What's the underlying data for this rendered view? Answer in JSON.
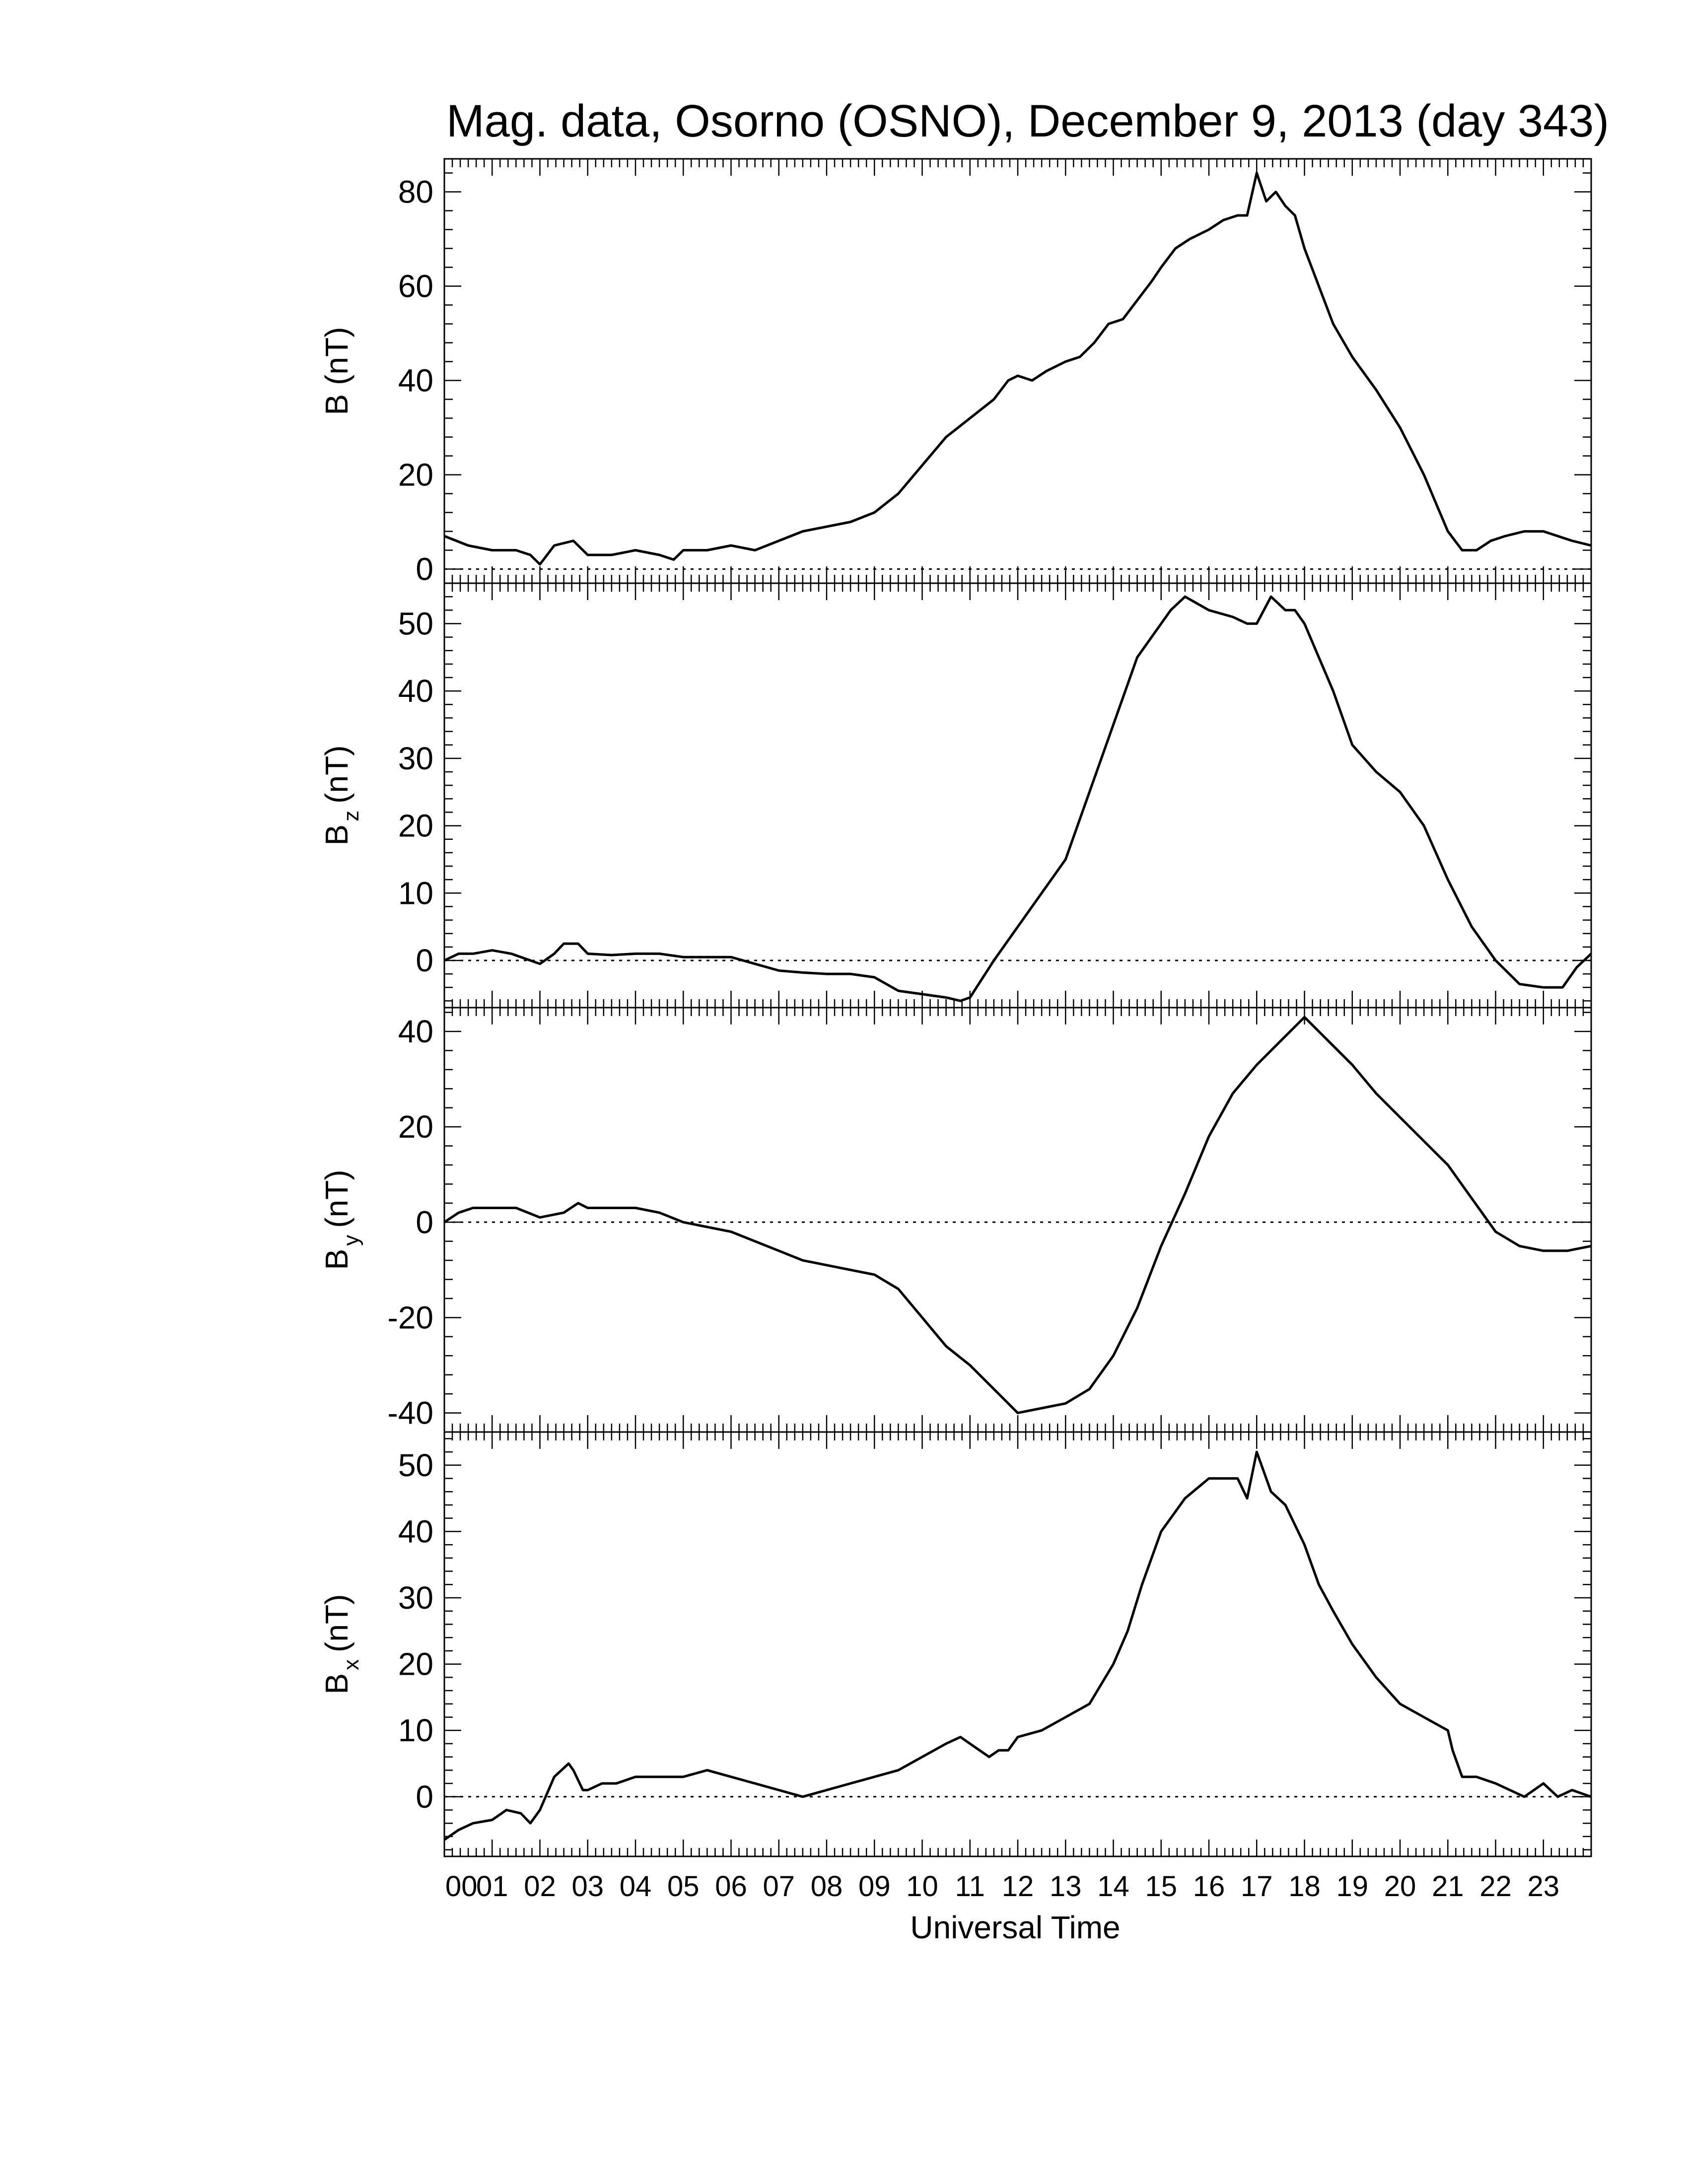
{
  "title": "Mag. data, Osorno (OSNO), December 9, 2013 (day 343)",
  "xlabel": "Universal Time",
  "colors": {
    "line": "#000000",
    "background": "#ffffff",
    "zero_line": "#000000"
  },
  "chart_data": [
    {
      "type": "line",
      "ylabel_main": "B (nT)",
      "ylabel_base": "B",
      "ylabel_sub": "",
      "ylabel_unit": "(nT)",
      "ylim": [
        -3,
        87
      ],
      "yticks": [
        0,
        20,
        40,
        60,
        80
      ],
      "ytick_labels": [
        "0",
        "20",
        "40",
        "60",
        "80"
      ],
      "xlim": [
        0,
        24
      ],
      "x_tick_labels": [
        "00",
        "01",
        "02",
        "03",
        "04",
        "05",
        "06",
        "07",
        "08",
        "09",
        "10",
        "11",
        "12",
        "13",
        "14",
        "15",
        "16",
        "17",
        "18",
        "19",
        "20",
        "21",
        "22",
        "23"
      ],
      "zero_line": "dotted",
      "series": [
        {
          "x": [
            0,
            0.5,
            1,
            1.5,
            1.8,
            2,
            2.3,
            2.7,
            3,
            3.5,
            4,
            4.5,
            4.8,
            5,
            5.5,
            6,
            6.5,
            7,
            7.5,
            8,
            8.5,
            9,
            9.5,
            10,
            10.5,
            11,
            11.5,
            11.8,
            12,
            12.3,
            12.6,
            13,
            13.3,
            13.6,
            13.9,
            14.2,
            14.5,
            14.8,
            15,
            15.3,
            15.6,
            16,
            16.3,
            16.6,
            16.8,
            17,
            17.2,
            17.4,
            17.6,
            17.8,
            18,
            18.3,
            18.6,
            19,
            19.5,
            20,
            20.5,
            21,
            21.3,
            21.6,
            21.9,
            22.2,
            22.6,
            23,
            23.3,
            23.6,
            24
          ],
          "y": [
            7,
            5,
            4,
            4,
            3,
            1,
            5,
            6,
            3,
            3,
            4,
            3,
            2,
            4,
            4,
            5,
            4,
            6,
            8,
            9,
            10,
            12,
            16,
            22,
            28,
            32,
            36,
            40,
            41,
            40,
            42,
            44,
            45,
            48,
            52,
            53,
            57,
            61,
            64,
            68,
            70,
            72,
            74,
            75,
            75,
            84,
            78,
            80,
            77,
            75,
            68,
            60,
            52,
            45,
            38,
            30,
            20,
            8,
            4,
            4,
            6,
            7,
            8,
            8,
            7,
            6,
            5
          ]
        }
      ]
    },
    {
      "type": "line",
      "ylabel_main": "B z (nT)",
      "ylabel_base": "B",
      "ylabel_sub": "z",
      "ylabel_unit": "(nT)",
      "ylim": [
        -7,
        56
      ],
      "yticks": [
        0,
        10,
        20,
        30,
        40,
        50
      ],
      "ytick_labels": [
        "0",
        "10",
        "20",
        "30",
        "40",
        "50"
      ],
      "xlim": [
        0,
        24
      ],
      "x_tick_labels": [
        "00",
        "01",
        "02",
        "03",
        "04",
        "05",
        "06",
        "07",
        "08",
        "09",
        "10",
        "11",
        "12",
        "13",
        "14",
        "15",
        "16",
        "17",
        "18",
        "19",
        "20",
        "21",
        "22",
        "23"
      ],
      "zero_line": "dotted",
      "series": [
        {
          "x": [
            0,
            0.3,
            0.6,
            1,
            1.4,
            1.8,
            2,
            2.3,
            2.5,
            2.8,
            3,
            3.5,
            4,
            4.5,
            5,
            5.5,
            6,
            6.5,
            7,
            7.5,
            8,
            8.5,
            9,
            9.5,
            10,
            10.5,
            10.8,
            11,
            11.5,
            12,
            12.5,
            13,
            13.5,
            14,
            14.5,
            15,
            15.2,
            15.5,
            16,
            16.5,
            16.8,
            17,
            17.3,
            17.6,
            17.8,
            18,
            18.3,
            18.6,
            19,
            19.5,
            20,
            20.5,
            21,
            21.5,
            22,
            22.5,
            23,
            23.4,
            23.7,
            24
          ],
          "y": [
            0,
            1,
            1,
            1.5,
            1,
            0,
            -0.5,
            1,
            2.5,
            2.5,
            1,
            0.8,
            1,
            1,
            0.5,
            0.5,
            0.5,
            -0.5,
            -1.5,
            -1.8,
            -2,
            -2,
            -2.5,
            -4.5,
            -5,
            -5.5,
            -6,
            -5.5,
            0,
            5,
            10,
            15,
            25,
            35,
            45,
            50,
            52,
            54,
            52,
            51,
            50,
            50,
            54,
            52,
            52,
            50,
            45,
            40,
            32,
            28,
            25,
            20,
            12,
            5,
            0,
            -3.5,
            -4,
            -4,
            -1,
            1
          ]
        }
      ]
    },
    {
      "type": "line",
      "ylabel_main": "B y (nT)",
      "ylabel_base": "B",
      "ylabel_sub": "y",
      "ylabel_unit": "(nT)",
      "ylim": [
        -44,
        45
      ],
      "yticks": [
        -40,
        -20,
        0,
        20,
        40
      ],
      "ytick_labels": [
        "-40",
        "-20",
        "0",
        "20",
        "40"
      ],
      "xlim": [
        0,
        24
      ],
      "x_tick_labels": [
        "00",
        "01",
        "02",
        "03",
        "04",
        "05",
        "06",
        "07",
        "08",
        "09",
        "10",
        "11",
        "12",
        "13",
        "14",
        "15",
        "16",
        "17",
        "18",
        "19",
        "20",
        "21",
        "22",
        "23"
      ],
      "zero_line": "dotted",
      "series": [
        {
          "x": [
            0,
            0.3,
            0.6,
            1,
            1.5,
            2,
            2.5,
            2.8,
            3,
            3.5,
            4,
            4.5,
            5,
            5.5,
            6,
            6.5,
            7,
            7.5,
            8,
            8.5,
            9,
            9.5,
            10,
            10.5,
            11,
            11.5,
            11.8,
            12,
            12.5,
            13,
            13.5,
            14,
            14.5,
            15,
            15.5,
            16,
            16.5,
            17,
            17.5,
            17.8,
            18,
            18.5,
            19,
            19.5,
            20,
            20.5,
            21,
            21.5,
            22,
            22.5,
            23,
            23.5,
            24
          ],
          "y": [
            0,
            2,
            3,
            3,
            3,
            1,
            2,
            4,
            3,
            3,
            3,
            2,
            0,
            -1,
            -2,
            -4,
            -6,
            -8,
            -9,
            -10,
            -11,
            -14,
            -20,
            -26,
            -30,
            -35,
            -38,
            -40,
            -39,
            -38,
            -35,
            -28,
            -18,
            -5,
            6,
            18,
            27,
            33,
            38,
            41,
            43,
            38,
            33,
            27,
            22,
            17,
            12,
            5,
            -2,
            -5,
            -6,
            -6,
            -5
          ]
        }
      ]
    },
    {
      "type": "line",
      "ylabel_main": "B x (nT)",
      "ylabel_base": "B",
      "ylabel_sub": "x",
      "ylabel_unit": "(nT)",
      "ylim": [
        -9,
        55
      ],
      "yticks": [
        0,
        10,
        20,
        30,
        40,
        50
      ],
      "ytick_labels": [
        "0",
        "10",
        "20",
        "30",
        "40",
        "50"
      ],
      "xlim": [
        0,
        24
      ],
      "x_tick_labels": [
        "00",
        "01",
        "02",
        "03",
        "04",
        "05",
        "06",
        "07",
        "08",
        "09",
        "10",
        "11",
        "12",
        "13",
        "14",
        "15",
        "16",
        "17",
        "18",
        "19",
        "20",
        "21",
        "22",
        "23"
      ],
      "zero_line": "dotted",
      "series": [
        {
          "x": [
            0,
            0.3,
            0.6,
            1,
            1.3,
            1.6,
            1.8,
            2,
            2.3,
            2.6,
            2.7,
            2.9,
            3,
            3.3,
            3.6,
            4,
            4.5,
            5,
            5.5,
            6,
            6.5,
            7,
            7.5,
            8,
            8.5,
            9,
            9.5,
            10,
            10.5,
            10.8,
            11,
            11.4,
            11.6,
            11.8,
            12,
            12.5,
            13,
            13.5,
            14,
            14.3,
            14.6,
            15,
            15.5,
            16,
            16.3,
            16.6,
            16.8,
            17,
            17.1,
            17.3,
            17.6,
            18,
            18.3,
            18.6,
            19,
            19.5,
            20,
            20.5,
            21,
            21.1,
            21.3,
            21.6,
            22,
            22.3,
            22.6,
            23,
            23.3,
            23.6,
            24
          ],
          "y": [
            -6.5,
            -5,
            -4,
            -3.5,
            -2,
            -2.5,
            -4,
            -2,
            3,
            5,
            4,
            1,
            1,
            2,
            2,
            3,
            3,
            3,
            4,
            3,
            2,
            1,
            0,
            1,
            2,
            3,
            4,
            6,
            8,
            9,
            8,
            6,
            7,
            7,
            9,
            10,
            12,
            14,
            20,
            25,
            32,
            40,
            45,
            48,
            48,
            48,
            45,
            52,
            50,
            46,
            44,
            38,
            32,
            28,
            23,
            18,
            14,
            12,
            10,
            7,
            3,
            3,
            2,
            1,
            0,
            2,
            0,
            1,
            0
          ]
        }
      ]
    }
  ]
}
